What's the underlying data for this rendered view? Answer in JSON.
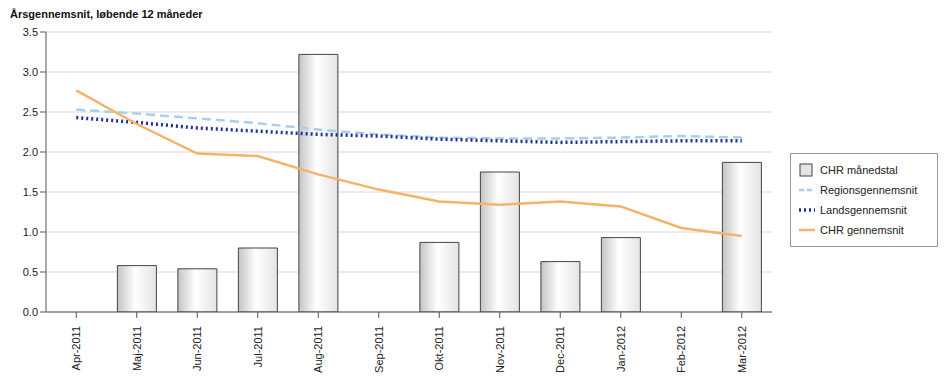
{
  "chart_data": {
    "type": "bar",
    "title": "Årsgennemsnit, løbende 12 måneder",
    "categories": [
      "Apr-2011",
      "Maj-2011",
      "Jun-2011",
      "Jul-2011",
      "Aug-2011",
      "Sep-2011",
      "Okt-2011",
      "Nov-2011",
      "Dec-2011",
      "Jan-2012",
      "Feb-2012",
      "Mar-2012"
    ],
    "series": [
      {
        "name": "CHR månedstal",
        "type": "bar",
        "color": "#e4e4e4",
        "values": [
          0,
          0.58,
          0.54,
          0.8,
          3.22,
          0,
          0.87,
          1.75,
          0.63,
          0.93,
          0,
          1.87
        ]
      },
      {
        "name": "Regionsgennemsnit",
        "type": "line",
        "line_style": "dashed",
        "color": "#a8cff0",
        "values": [
          2.53,
          2.48,
          2.42,
          2.36,
          2.28,
          2.22,
          2.18,
          2.17,
          2.17,
          2.18,
          2.2,
          2.18
        ]
      },
      {
        "name": "Landsgennemsnit",
        "type": "line",
        "line_style": "dotted",
        "color": "#1f2f9e",
        "values": [
          2.43,
          2.37,
          2.3,
          2.26,
          2.22,
          2.2,
          2.16,
          2.14,
          2.12,
          2.13,
          2.14,
          2.14
        ]
      },
      {
        "name": "CHR gennemsnit",
        "type": "line",
        "line_style": "solid",
        "color": "#f5b26b",
        "values": [
          2.77,
          2.35,
          1.98,
          1.95,
          1.72,
          1.53,
          1.38,
          1.34,
          1.38,
          1.32,
          1.05,
          0.95
        ]
      }
    ],
    "ylim": [
      0,
      3.5
    ],
    "yticks": [
      {
        "value": 0,
        "label": "0.0"
      },
      {
        "value": 0.5,
        "label": "0.5"
      },
      {
        "value": 1,
        "label": "1.0"
      },
      {
        "value": 1.5,
        "label": "1.5"
      },
      {
        "value": 2,
        "label": "2.0"
      },
      {
        "value": 2.5,
        "label": "2.5"
      },
      {
        "value": 3,
        "label": "3.0"
      },
      {
        "value": 3.5,
        "label": "3.5"
      }
    ],
    "grid": true,
    "legend": "right"
  }
}
